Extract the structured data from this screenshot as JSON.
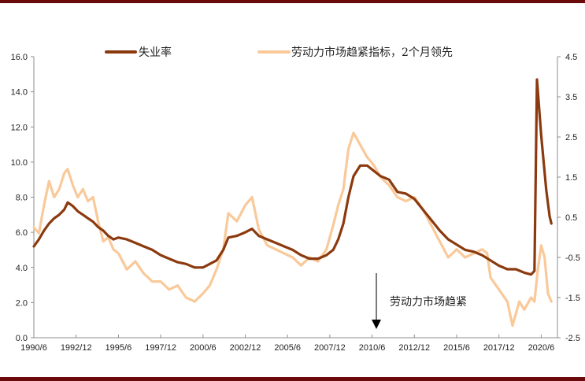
{
  "chart_data": {
    "type": "line",
    "title": "",
    "legend": [
      {
        "name": "失业率",
        "color": "#8b3a0f",
        "axis": "left"
      },
      {
        "name": "劳动力市场趋紧指标，2个月领先",
        "color": "#f9c99a",
        "axis": "right"
      }
    ],
    "legend_position": "top",
    "grid": false,
    "x_ticks": [
      "1990/6",
      "1992/12",
      "1995/6",
      "1997/12",
      "2000/6",
      "2002/12",
      "2005/6",
      "2007/12",
      "2010/6",
      "2012/12",
      "2015/6",
      "2017/12",
      "2020/6"
    ],
    "left_axis": {
      "min": 0.0,
      "max": 16.0,
      "step": 2.0,
      "ticks": [
        "0.0",
        "2.0",
        "4.0",
        "6.0",
        "8.0",
        "10.0",
        "12.0",
        "14.0",
        "16.0"
      ]
    },
    "right_axis": {
      "min": -2.5,
      "max": 4.5,
      "step": 1.0,
      "ticks": [
        "-2.5",
        "-1.5",
        "-0.5",
        "0.5",
        "1.5",
        "2.5",
        "3.5",
        "4.5"
      ]
    },
    "annotation": {
      "text": "劳动力市场趋紧",
      "arrow": "down",
      "x": "2010/6"
    },
    "series": [
      {
        "name": "失业率",
        "axis": "left",
        "points": [
          [
            1990.5,
            5.2
          ],
          [
            1990.8,
            5.6
          ],
          [
            1991.1,
            6.1
          ],
          [
            1991.4,
            6.5
          ],
          [
            1991.7,
            6.8
          ],
          [
            1992.0,
            7.0
          ],
          [
            1992.3,
            7.3
          ],
          [
            1992.5,
            7.7
          ],
          [
            1992.8,
            7.5
          ],
          [
            1993.1,
            7.2
          ],
          [
            1993.4,
            7.0
          ],
          [
            1993.7,
            6.8
          ],
          [
            1994.0,
            6.6
          ],
          [
            1994.3,
            6.3
          ],
          [
            1994.6,
            6.1
          ],
          [
            1994.9,
            5.8
          ],
          [
            1995.2,
            5.6
          ],
          [
            1995.5,
            5.7
          ],
          [
            1996.0,
            5.6
          ],
          [
            1996.5,
            5.4
          ],
          [
            1997.0,
            5.2
          ],
          [
            1997.5,
            5.0
          ],
          [
            1998.0,
            4.7
          ],
          [
            1998.5,
            4.5
          ],
          [
            1999.0,
            4.3
          ],
          [
            1999.5,
            4.2
          ],
          [
            2000.0,
            4.0
          ],
          [
            2000.5,
            4.0
          ],
          [
            2000.9,
            4.2
          ],
          [
            2001.3,
            4.4
          ],
          [
            2001.7,
            5.0
          ],
          [
            2002.0,
            5.7
          ],
          [
            2002.5,
            5.8
          ],
          [
            2003.0,
            6.0
          ],
          [
            2003.4,
            6.2
          ],
          [
            2003.8,
            5.8
          ],
          [
            2004.3,
            5.6
          ],
          [
            2004.8,
            5.4
          ],
          [
            2005.3,
            5.2
          ],
          [
            2005.8,
            5.0
          ],
          [
            2006.3,
            4.7
          ],
          [
            2006.8,
            4.5
          ],
          [
            2007.3,
            4.5
          ],
          [
            2007.8,
            4.7
          ],
          [
            2008.2,
            5.0
          ],
          [
            2008.5,
            5.6
          ],
          [
            2008.8,
            6.5
          ],
          [
            2009.1,
            8.0
          ],
          [
            2009.4,
            9.2
          ],
          [
            2009.8,
            9.8
          ],
          [
            2010.2,
            9.8
          ],
          [
            2010.6,
            9.5
          ],
          [
            2011.0,
            9.2
          ],
          [
            2011.5,
            9.0
          ],
          [
            2012.0,
            8.3
          ],
          [
            2012.5,
            8.2
          ],
          [
            2013.0,
            7.9
          ],
          [
            2013.5,
            7.3
          ],
          [
            2014.0,
            6.7
          ],
          [
            2014.5,
            6.1
          ],
          [
            2015.0,
            5.6
          ],
          [
            2015.5,
            5.3
          ],
          [
            2016.0,
            5.0
          ],
          [
            2016.5,
            4.9
          ],
          [
            2017.0,
            4.7
          ],
          [
            2017.5,
            4.4
          ],
          [
            2018.0,
            4.1
          ],
          [
            2018.5,
            3.9
          ],
          [
            2019.0,
            3.9
          ],
          [
            2019.5,
            3.7
          ],
          [
            2019.9,
            3.6
          ],
          [
            2020.1,
            3.8
          ],
          [
            2020.25,
            14.7
          ],
          [
            2020.5,
            11.5
          ],
          [
            2020.8,
            8.4
          ],
          [
            2021.0,
            6.9
          ],
          [
            2021.1,
            6.5
          ]
        ]
      },
      {
        "name": "劳动力市场趋紧指标，2个月领先",
        "axis": "right",
        "points": [
          [
            1990.5,
            0.25
          ],
          [
            1990.8,
            0.1
          ],
          [
            1991.1,
            0.8
          ],
          [
            1991.4,
            1.4
          ],
          [
            1991.7,
            1.0
          ],
          [
            1992.0,
            1.2
          ],
          [
            1992.3,
            1.6
          ],
          [
            1992.5,
            1.7
          ],
          [
            1992.8,
            1.3
          ],
          [
            1993.1,
            1.0
          ],
          [
            1993.4,
            1.2
          ],
          [
            1993.7,
            0.9
          ],
          [
            1994.0,
            1.0
          ],
          [
            1994.3,
            0.4
          ],
          [
            1994.6,
            -0.1
          ],
          [
            1994.9,
            0.0
          ],
          [
            1995.2,
            -0.3
          ],
          [
            1995.5,
            -0.4
          ],
          [
            1996.0,
            -0.8
          ],
          [
            1996.5,
            -0.6
          ],
          [
            1997.0,
            -0.9
          ],
          [
            1997.5,
            -1.1
          ],
          [
            1998.0,
            -1.1
          ],
          [
            1998.5,
            -1.3
          ],
          [
            1999.0,
            -1.2
          ],
          [
            1999.5,
            -1.5
          ],
          [
            2000.0,
            -1.6
          ],
          [
            2000.5,
            -1.4
          ],
          [
            2000.9,
            -1.2
          ],
          [
            2001.3,
            -0.8
          ],
          [
            2001.7,
            -0.3
          ],
          [
            2002.0,
            0.6
          ],
          [
            2002.5,
            0.4
          ],
          [
            2003.0,
            0.8
          ],
          [
            2003.4,
            1.0
          ],
          [
            2003.8,
            0.2
          ],
          [
            2004.3,
            -0.2
          ],
          [
            2004.8,
            -0.3
          ],
          [
            2005.3,
            -0.4
          ],
          [
            2005.8,
            -0.5
          ],
          [
            2006.3,
            -0.7
          ],
          [
            2006.8,
            -0.5
          ],
          [
            2007.3,
            -0.6
          ],
          [
            2007.8,
            -0.3
          ],
          [
            2008.2,
            0.3
          ],
          [
            2008.5,
            0.8
          ],
          [
            2008.8,
            1.2
          ],
          [
            2009.1,
            2.2
          ],
          [
            2009.4,
            2.6
          ],
          [
            2009.8,
            2.3
          ],
          [
            2010.2,
            2.0
          ],
          [
            2010.6,
            1.8
          ],
          [
            2011.0,
            1.5
          ],
          [
            2011.5,
            1.3
          ],
          [
            2012.0,
            1.0
          ],
          [
            2012.5,
            0.9
          ],
          [
            2013.0,
            1.0
          ],
          [
            2013.5,
            0.7
          ],
          [
            2014.0,
            0.3
          ],
          [
            2014.5,
            -0.1
          ],
          [
            2015.0,
            -0.5
          ],
          [
            2015.5,
            -0.3
          ],
          [
            2016.0,
            -0.5
          ],
          [
            2016.5,
            -0.4
          ],
          [
            2017.0,
            -0.3
          ],
          [
            2017.3,
            -0.4
          ],
          [
            2017.5,
            -1.0
          ],
          [
            2018.0,
            -1.3
          ],
          [
            2018.5,
            -1.6
          ],
          [
            2018.8,
            -2.2
          ],
          [
            2019.2,
            -1.6
          ],
          [
            2019.5,
            -1.8
          ],
          [
            2019.9,
            -1.5
          ],
          [
            2020.1,
            -1.6
          ],
          [
            2020.3,
            -0.8
          ],
          [
            2020.5,
            -0.2
          ],
          [
            2020.7,
            -0.5
          ],
          [
            2020.9,
            -1.4
          ],
          [
            2021.1,
            -1.6
          ]
        ]
      }
    ]
  }
}
